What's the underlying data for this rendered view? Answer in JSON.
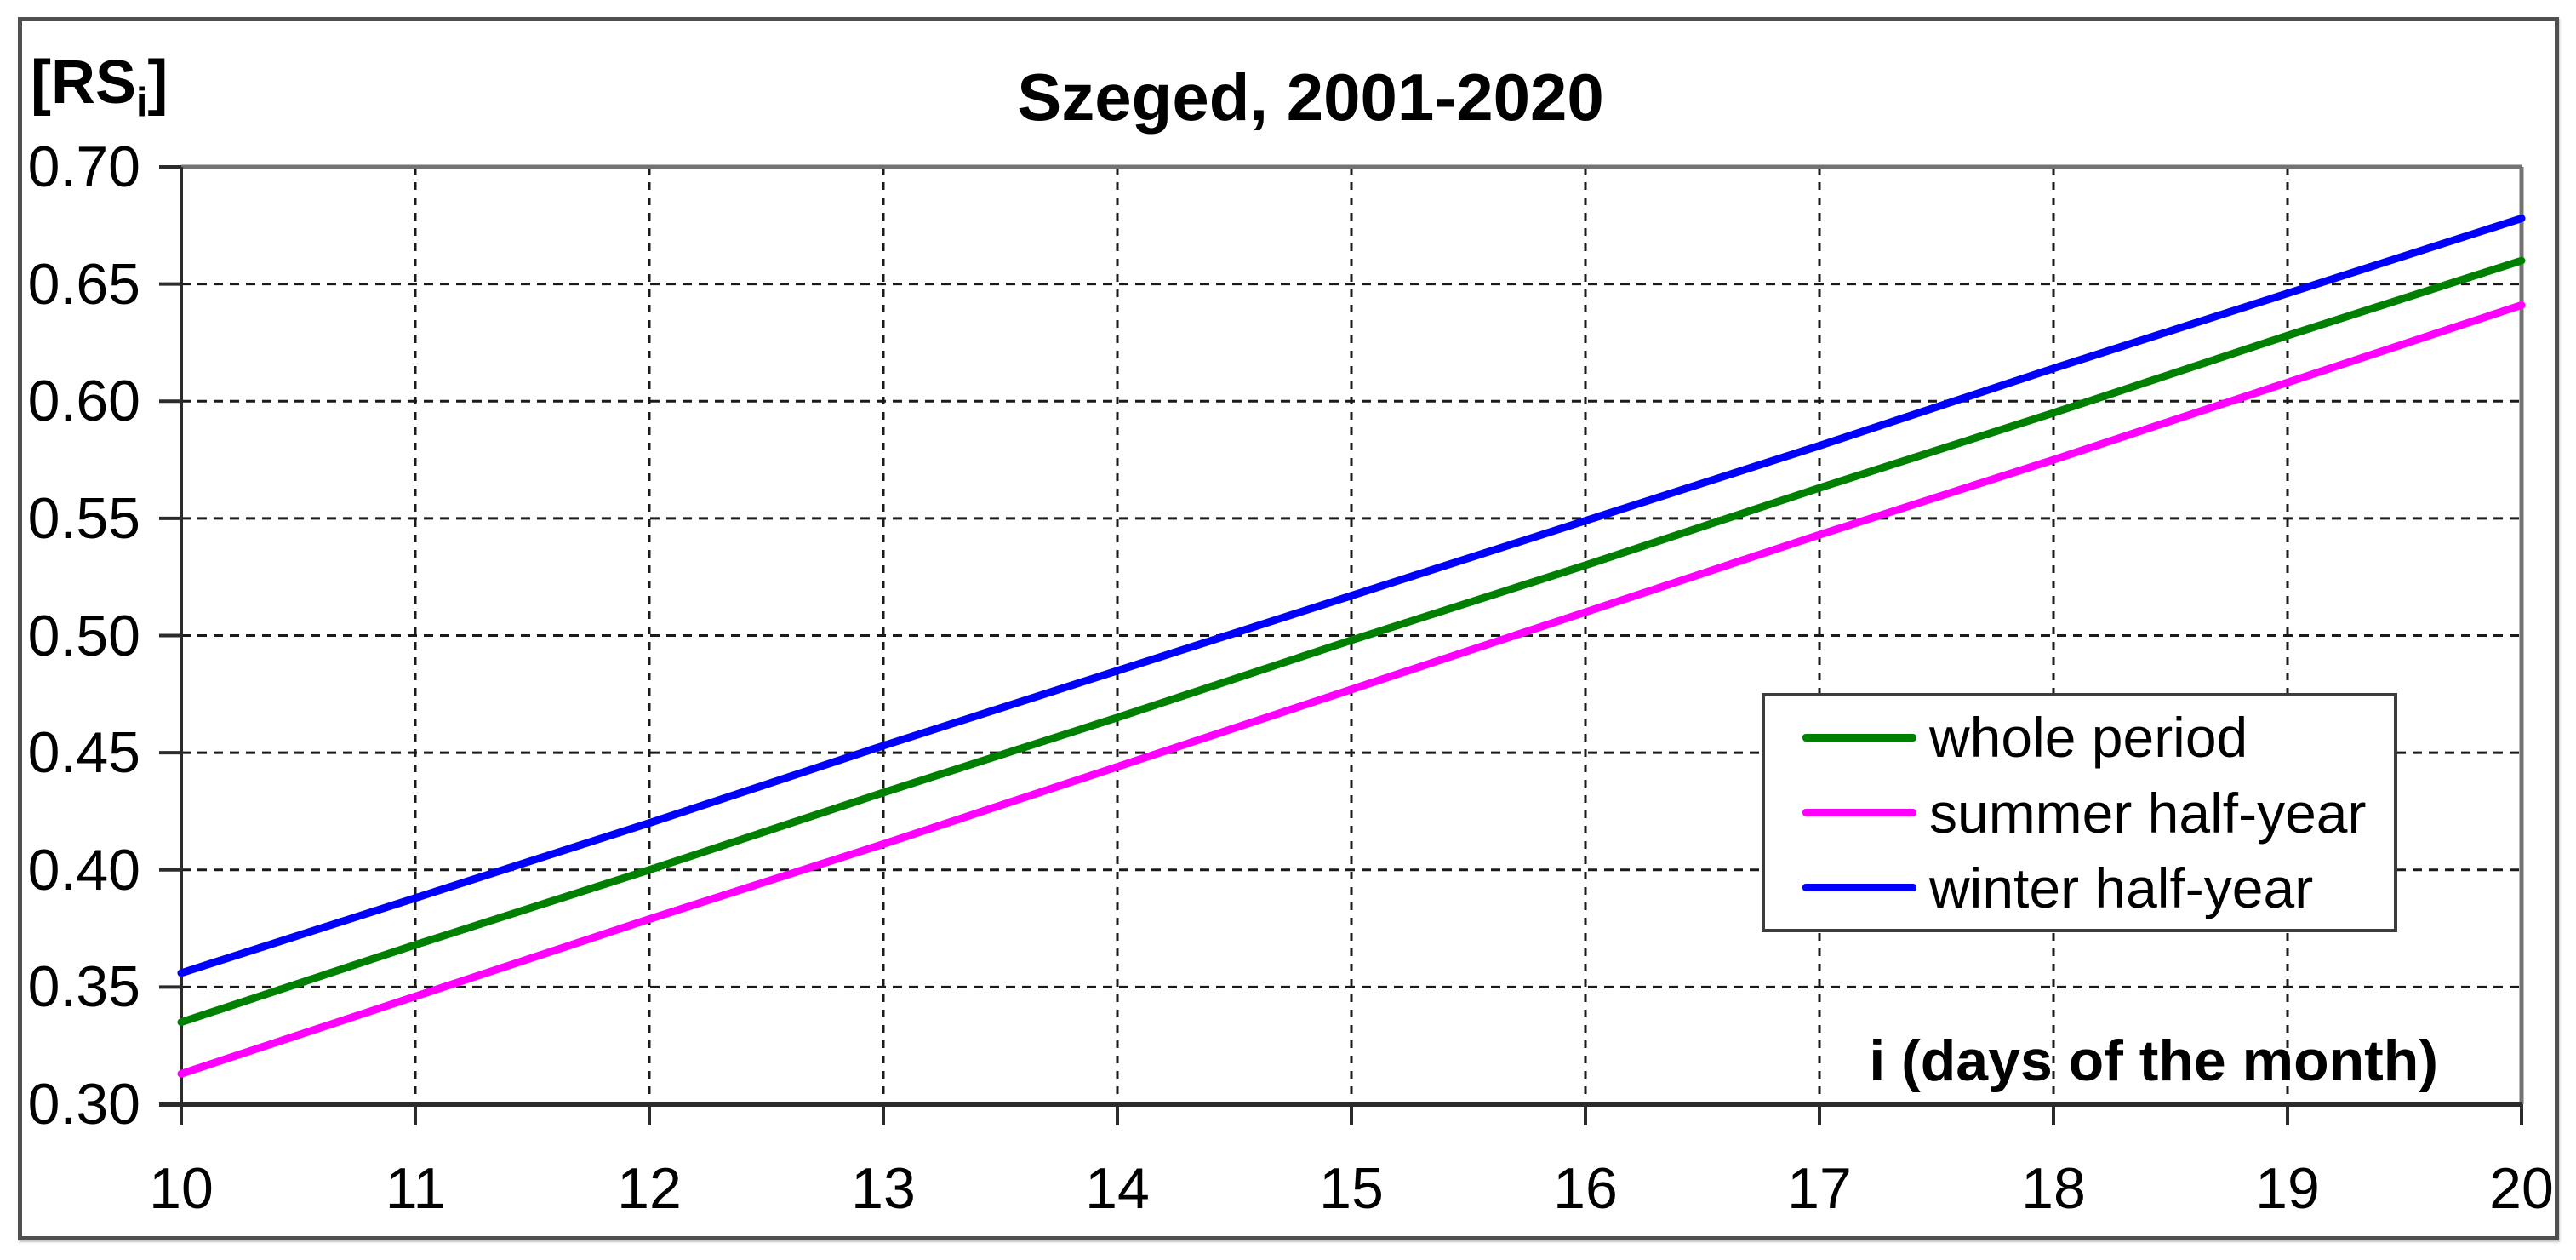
{
  "chart_data": {
    "type": "line",
    "title": "Szeged, 2001-2020",
    "xlabel": "i (days of the month)",
    "ylabel": "[RSi]",
    "ylabel_parts": {
      "pre": "[RS",
      "sub": "i",
      "post": "]"
    },
    "x": [
      10,
      11,
      12,
      13,
      14,
      15,
      16,
      17,
      18,
      19,
      20
    ],
    "xlim": [
      10,
      20
    ],
    "ylim": [
      0.3,
      0.7
    ],
    "xtick_labels": [
      "10",
      "11",
      "12",
      "13",
      "14",
      "15",
      "16",
      "17",
      "18",
      "19",
      "20"
    ],
    "ytick_values": [
      0.3,
      0.35,
      0.4,
      0.45,
      0.5,
      0.55,
      0.6,
      0.65,
      0.7
    ],
    "ytick_labels": [
      "0.30",
      "0.35",
      "0.40",
      "0.45",
      "0.50",
      "0.55",
      "0.60",
      "0.65",
      "0.70"
    ],
    "grid": "dashed",
    "legend_position": "inside-right",
    "series": [
      {
        "name": "whole period",
        "color": "#008000",
        "values": [
          0.335,
          0.368,
          0.4,
          0.433,
          0.465,
          0.498,
          0.53,
          0.563,
          0.595,
          0.628,
          0.66
        ]
      },
      {
        "name": "summer half-year",
        "color": "#ff00ff",
        "values": [
          0.313,
          0.346,
          0.379,
          0.411,
          0.444,
          0.477,
          0.51,
          0.543,
          0.575,
          0.608,
          0.641
        ]
      },
      {
        "name": "winter half-year",
        "color": "#0000ff",
        "values": [
          0.356,
          0.388,
          0.42,
          0.453,
          0.485,
          0.517,
          0.549,
          0.581,
          0.614,
          0.646,
          0.678
        ]
      }
    ]
  },
  "colors": {
    "background": "#ffffff",
    "text": "#000000",
    "axis": "#2b2b2b",
    "plot_border": "#737373",
    "grid": "#1a1a1a",
    "frame": "#4f4f4f"
  }
}
